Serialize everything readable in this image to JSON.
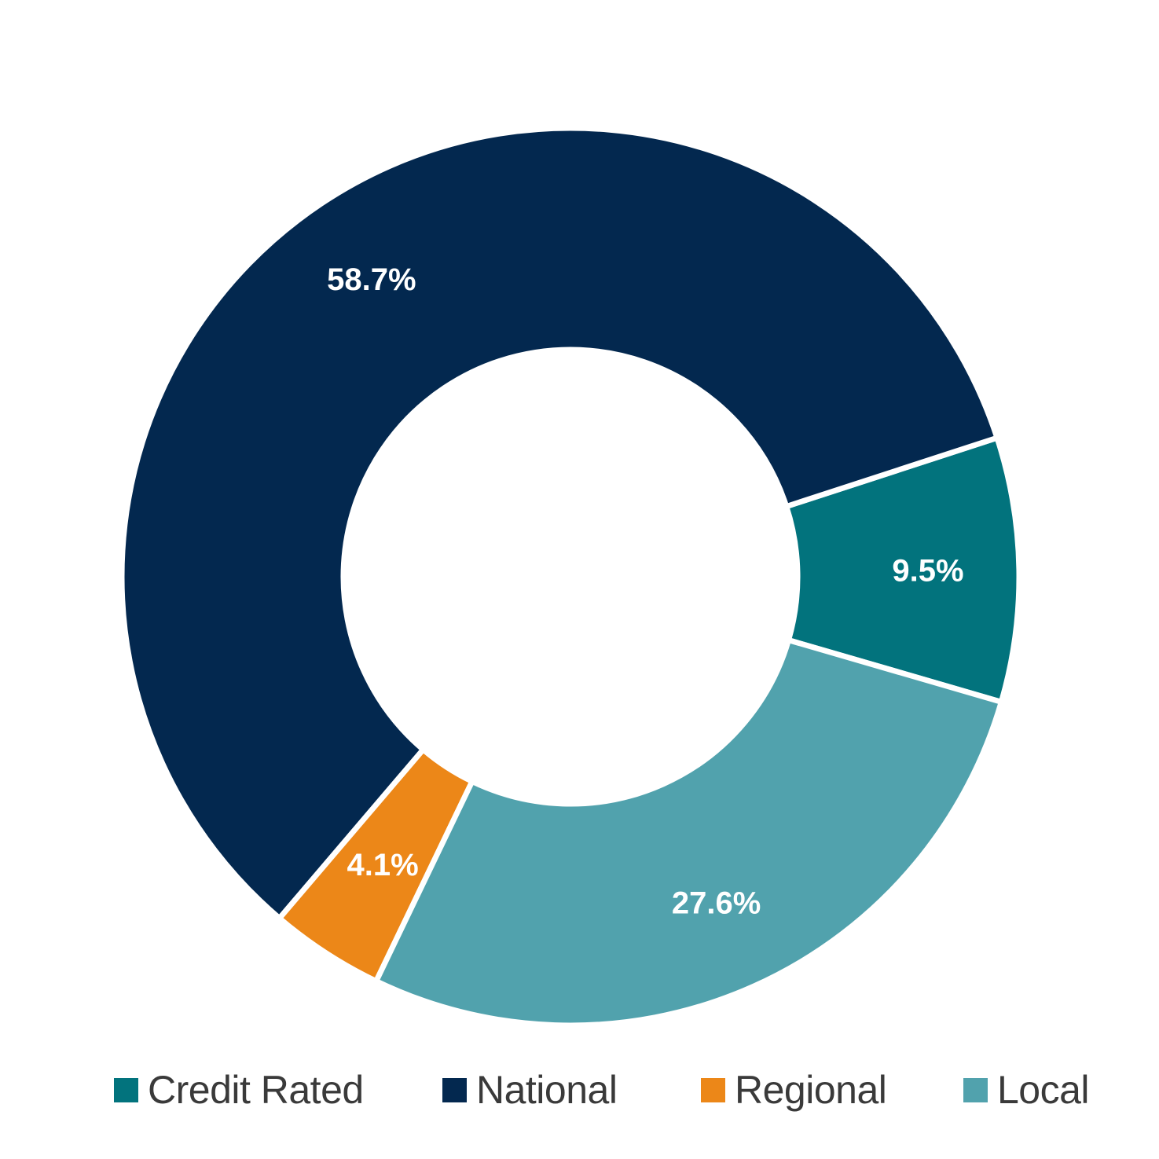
{
  "chart_data": {
    "type": "pie",
    "variant": "donut",
    "title": "",
    "categories": [
      "Credit Rated",
      "National",
      "Regional",
      "Local"
    ],
    "values": [
      9.5,
      58.7,
      4.1,
      27.6
    ],
    "labels": [
      "9.5%",
      "58.7%",
      "4.1%",
      "27.6%"
    ],
    "colors": [
      "#02737d",
      "#03284f",
      "#ec8718",
      "#51a2ad"
    ],
    "legend_position": "bottom",
    "legend": [
      {
        "label": "Credit Rated",
        "color": "#02737d"
      },
      {
        "label": "National",
        "color": "#03284f"
      },
      {
        "label": "Regional",
        "color": "#ec8718"
      },
      {
        "label": "Local",
        "color": "#51a2ad"
      }
    ]
  }
}
